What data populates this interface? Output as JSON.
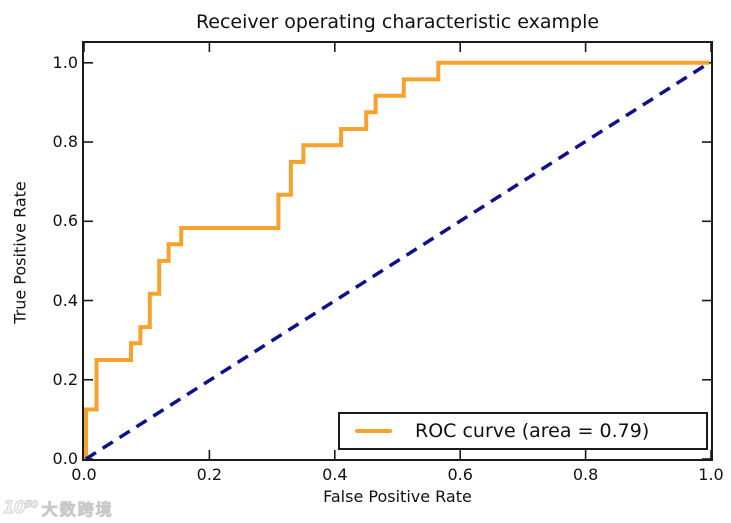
{
  "figure": {
    "title": "Receiver operating characteristic example",
    "x_axis": {
      "label": "False Positive Rate",
      "tick_labels": [
        "0.0",
        "0.2",
        "0.4",
        "0.6",
        "0.8",
        "1.0"
      ]
    },
    "y_axis": {
      "label": "True Positive Rate",
      "tick_labels": [
        "0.0",
        "0.2",
        "0.4",
        "0.6",
        "0.8",
        "1.0"
      ]
    },
    "legend": {
      "label": "ROC curve (area = 0.79)"
    },
    "watermark": {
      "logo": "10⁵⁰",
      "text": "大数跨境"
    }
  },
  "chart_data": {
    "type": "line",
    "title": "Receiver operating characteristic example",
    "xlabel": "False Positive Rate",
    "ylabel": "True Positive Rate",
    "xlim": [
      0.0,
      1.0
    ],
    "ylim": [
      0.0,
      1.05
    ],
    "xticks": [
      0.0,
      0.2,
      0.4,
      0.6,
      0.8,
      1.0
    ],
    "yticks": [
      0.0,
      0.2,
      0.4,
      0.6,
      0.8,
      1.0
    ],
    "grid": false,
    "legend_position": "lower right",
    "roc_auc": 0.79,
    "colors": {
      "roc_curve": "#F7A12F",
      "chance_line": "#10108C",
      "axes": "#1a1a1a"
    },
    "series": [
      {
        "name": "ROC curve (area = 0.79)",
        "style": "solid-step",
        "color": "#F7A12F",
        "linewidth": 4,
        "points": [
          [
            0.0,
            0.0
          ],
          [
            0.0,
            0.125
          ],
          [
            0.02,
            0.125
          ],
          [
            0.02,
            0.25
          ],
          [
            0.075,
            0.25
          ],
          [
            0.075,
            0.292
          ],
          [
            0.09,
            0.292
          ],
          [
            0.09,
            0.333
          ],
          [
            0.105,
            0.333
          ],
          [
            0.105,
            0.417
          ],
          [
            0.12,
            0.417
          ],
          [
            0.12,
            0.5
          ],
          [
            0.135,
            0.5
          ],
          [
            0.135,
            0.542
          ],
          [
            0.155,
            0.542
          ],
          [
            0.155,
            0.583
          ],
          [
            0.31,
            0.583
          ],
          [
            0.31,
            0.667
          ],
          [
            0.33,
            0.667
          ],
          [
            0.33,
            0.75
          ],
          [
            0.35,
            0.75
          ],
          [
            0.35,
            0.792
          ],
          [
            0.41,
            0.792
          ],
          [
            0.41,
            0.833
          ],
          [
            0.45,
            0.833
          ],
          [
            0.45,
            0.875
          ],
          [
            0.465,
            0.875
          ],
          [
            0.465,
            0.917
          ],
          [
            0.51,
            0.917
          ],
          [
            0.51,
            0.958
          ],
          [
            0.565,
            0.958
          ],
          [
            0.565,
            1.0
          ],
          [
            1.0,
            1.0
          ]
        ]
      },
      {
        "name": "chance-diagonal",
        "style": "dashed",
        "color": "#10108C",
        "linewidth": 3.5,
        "points": [
          [
            0.0,
            0.0
          ],
          [
            1.0,
            1.0
          ]
        ]
      }
    ]
  }
}
